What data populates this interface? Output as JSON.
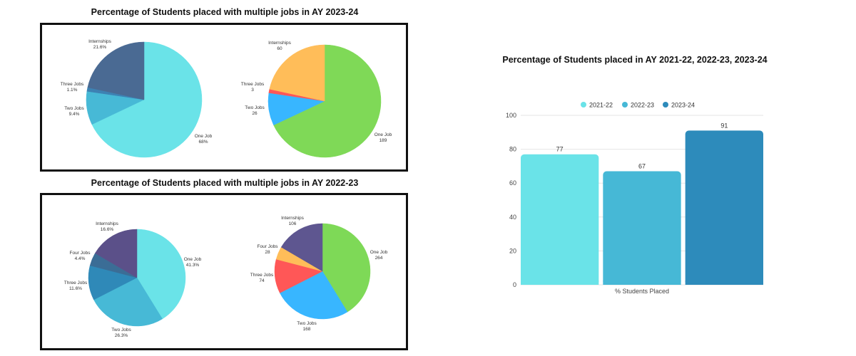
{
  "titles": {
    "top": "Percentage of Students placed with multiple jobs in AY 2023-24",
    "bottom": "Percentage of Students placed with multiple jobs in AY 2022-23",
    "bar": "Percentage of Students placed in AY 2021-22, 2022-23, 2023-24"
  },
  "chart_data": [
    {
      "id": "pie-2023-24-percent",
      "type": "pie",
      "unit": "%",
      "slices": [
        {
          "label": "One Job",
          "value": 68,
          "value_text": "68%",
          "color": "#6ae3e8"
        },
        {
          "label": "Two Jobs",
          "value": 9.4,
          "value_text": "9.4%",
          "color": "#47b9d6"
        },
        {
          "label": "Three Jobs",
          "value": 1.1,
          "value_text": "1.1%",
          "color": "#3d82b3"
        },
        {
          "label": "Internships",
          "value": 21.6,
          "value_text": "21.6%",
          "color": "#4a6a93"
        }
      ]
    },
    {
      "id": "pie-2023-24-count",
      "type": "pie",
      "slices": [
        {
          "label": "One Job",
          "value": 189,
          "value_text": "189",
          "color": "#7fd957"
        },
        {
          "label": "Two Jobs",
          "value": 26,
          "value_text": "26",
          "color": "#38b6ff"
        },
        {
          "label": "Three Jobs",
          "value": 3,
          "value_text": "3",
          "color": "#ff5757"
        },
        {
          "label": "Internships",
          "value": 60,
          "value_text": "60",
          "color": "#ffbd59"
        }
      ]
    },
    {
      "id": "pie-2022-23-percent",
      "type": "pie",
      "unit": "%",
      "slices": [
        {
          "label": "One Job",
          "value": 41.3,
          "value_text": "41.3%",
          "color": "#6ae3e8"
        },
        {
          "label": "Two Jobs",
          "value": 26.3,
          "value_text": "26.3%",
          "color": "#47b9d6"
        },
        {
          "label": "Three Jobs",
          "value": 11.6,
          "value_text": "11.6%",
          "color": "#2f89b8"
        },
        {
          "label": "Four Jobs",
          "value": 4.4,
          "value_text": "4.4%",
          "color": "#3b6d96"
        },
        {
          "label": "Internships",
          "value": 16.6,
          "value_text": "16.6%",
          "color": "#5b5089"
        }
      ]
    },
    {
      "id": "pie-2022-23-count",
      "type": "pie",
      "slices": [
        {
          "label": "One Job",
          "value": 264,
          "value_text": "264",
          "color": "#7ed957"
        },
        {
          "label": "Two Jobs",
          "value": 168,
          "value_text": "168",
          "color": "#38b6ff"
        },
        {
          "label": "Three Jobs",
          "value": 74,
          "value_text": "74",
          "color": "#ff5757"
        },
        {
          "label": "Four Jobs",
          "value": 28,
          "value_text": "28",
          "color": "#ffbd59"
        },
        {
          "label": "Internships",
          "value": 106,
          "value_text": "106",
          "color": "#5e5690"
        }
      ]
    },
    {
      "id": "bar-placement",
      "type": "bar",
      "title": "Percentage of Students placed in AY 2021-22, 2022-23, 2023-24",
      "xlabel": "% Students Placed",
      "ylabel": "",
      "ylim": [
        0,
        100
      ],
      "yticks": [
        0,
        20,
        40,
        60,
        80,
        100
      ],
      "grid": true,
      "legend": "top",
      "categories": [
        "% Students Placed"
      ],
      "series": [
        {
          "name": "2021-22",
          "values": [
            77
          ],
          "color": "#6ae3e8"
        },
        {
          "name": "2022-23",
          "values": [
            67
          ],
          "color": "#46b8d6"
        },
        {
          "name": "2023-24",
          "values": [
            91
          ],
          "color": "#2d8bbb"
        }
      ]
    }
  ]
}
